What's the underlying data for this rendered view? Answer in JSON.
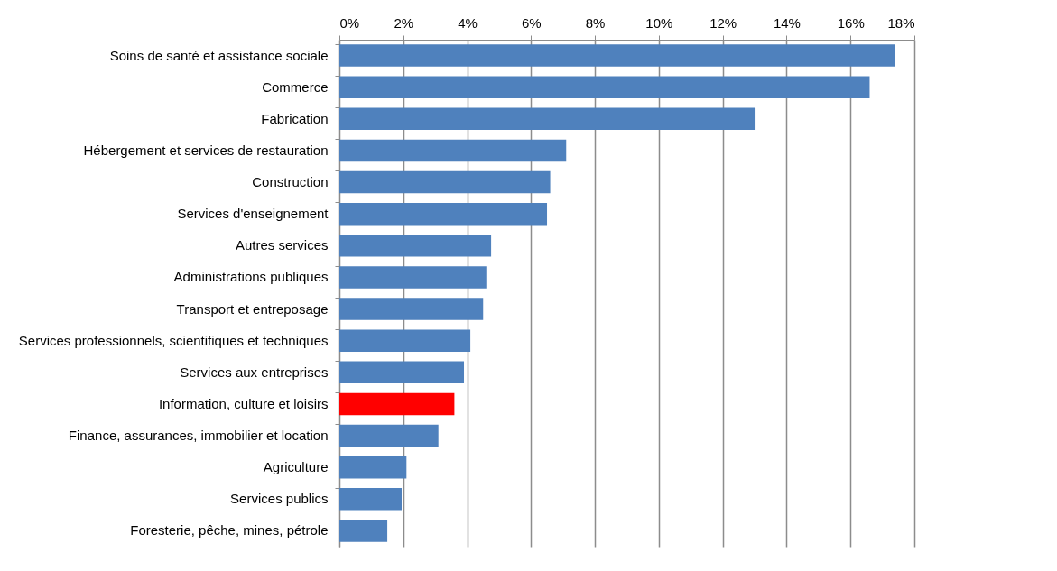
{
  "chart_data": {
    "type": "bar",
    "orientation": "horizontal",
    "categories": [
      "Soins de santé et assistance sociale",
      "Commerce",
      "Fabrication",
      "Hébergement et services de restauration",
      "Construction",
      "Services d'enseignement",
      "Autres services",
      "Administrations publiques",
      "Transport et entreposage",
      "Services professionnels, scientifiques et techniques",
      "Services aux entreprises",
      "Information, culture et loisirs",
      "Finance, assurances, immobilier et location",
      "Agriculture",
      "Services publics",
      "Foresterie, pêche, mines,  pétrole"
    ],
    "values": [
      17.4,
      16.6,
      13.0,
      7.1,
      6.6,
      6.5,
      4.75,
      4.6,
      4.5,
      4.1,
      3.9,
      3.6,
      3.1,
      2.1,
      1.95,
      1.5
    ],
    "colors": [
      "#4f81bd",
      "#4f81bd",
      "#4f81bd",
      "#4f81bd",
      "#4f81bd",
      "#4f81bd",
      "#4f81bd",
      "#4f81bd",
      "#4f81bd",
      "#4f81bd",
      "#4f81bd",
      "#ff0000",
      "#4f81bd",
      "#4f81bd",
      "#4f81bd",
      "#4f81bd"
    ],
    "xlim": [
      0,
      18
    ],
    "xticks": [
      {
        "value": 0,
        "label": "0%"
      },
      {
        "value": 2,
        "label": "2%"
      },
      {
        "value": 4,
        "label": "4%"
      },
      {
        "value": 6,
        "label": "6%"
      },
      {
        "value": 8,
        "label": "8%"
      },
      {
        "value": 10,
        "label": "10%"
      },
      {
        "value": 12,
        "label": "12%"
      },
      {
        "value": 14,
        "label": "14%"
      },
      {
        "value": 16,
        "label": "16%"
      },
      {
        "value": 18,
        "label": "18%"
      }
    ],
    "grid": "x",
    "legend": false
  }
}
